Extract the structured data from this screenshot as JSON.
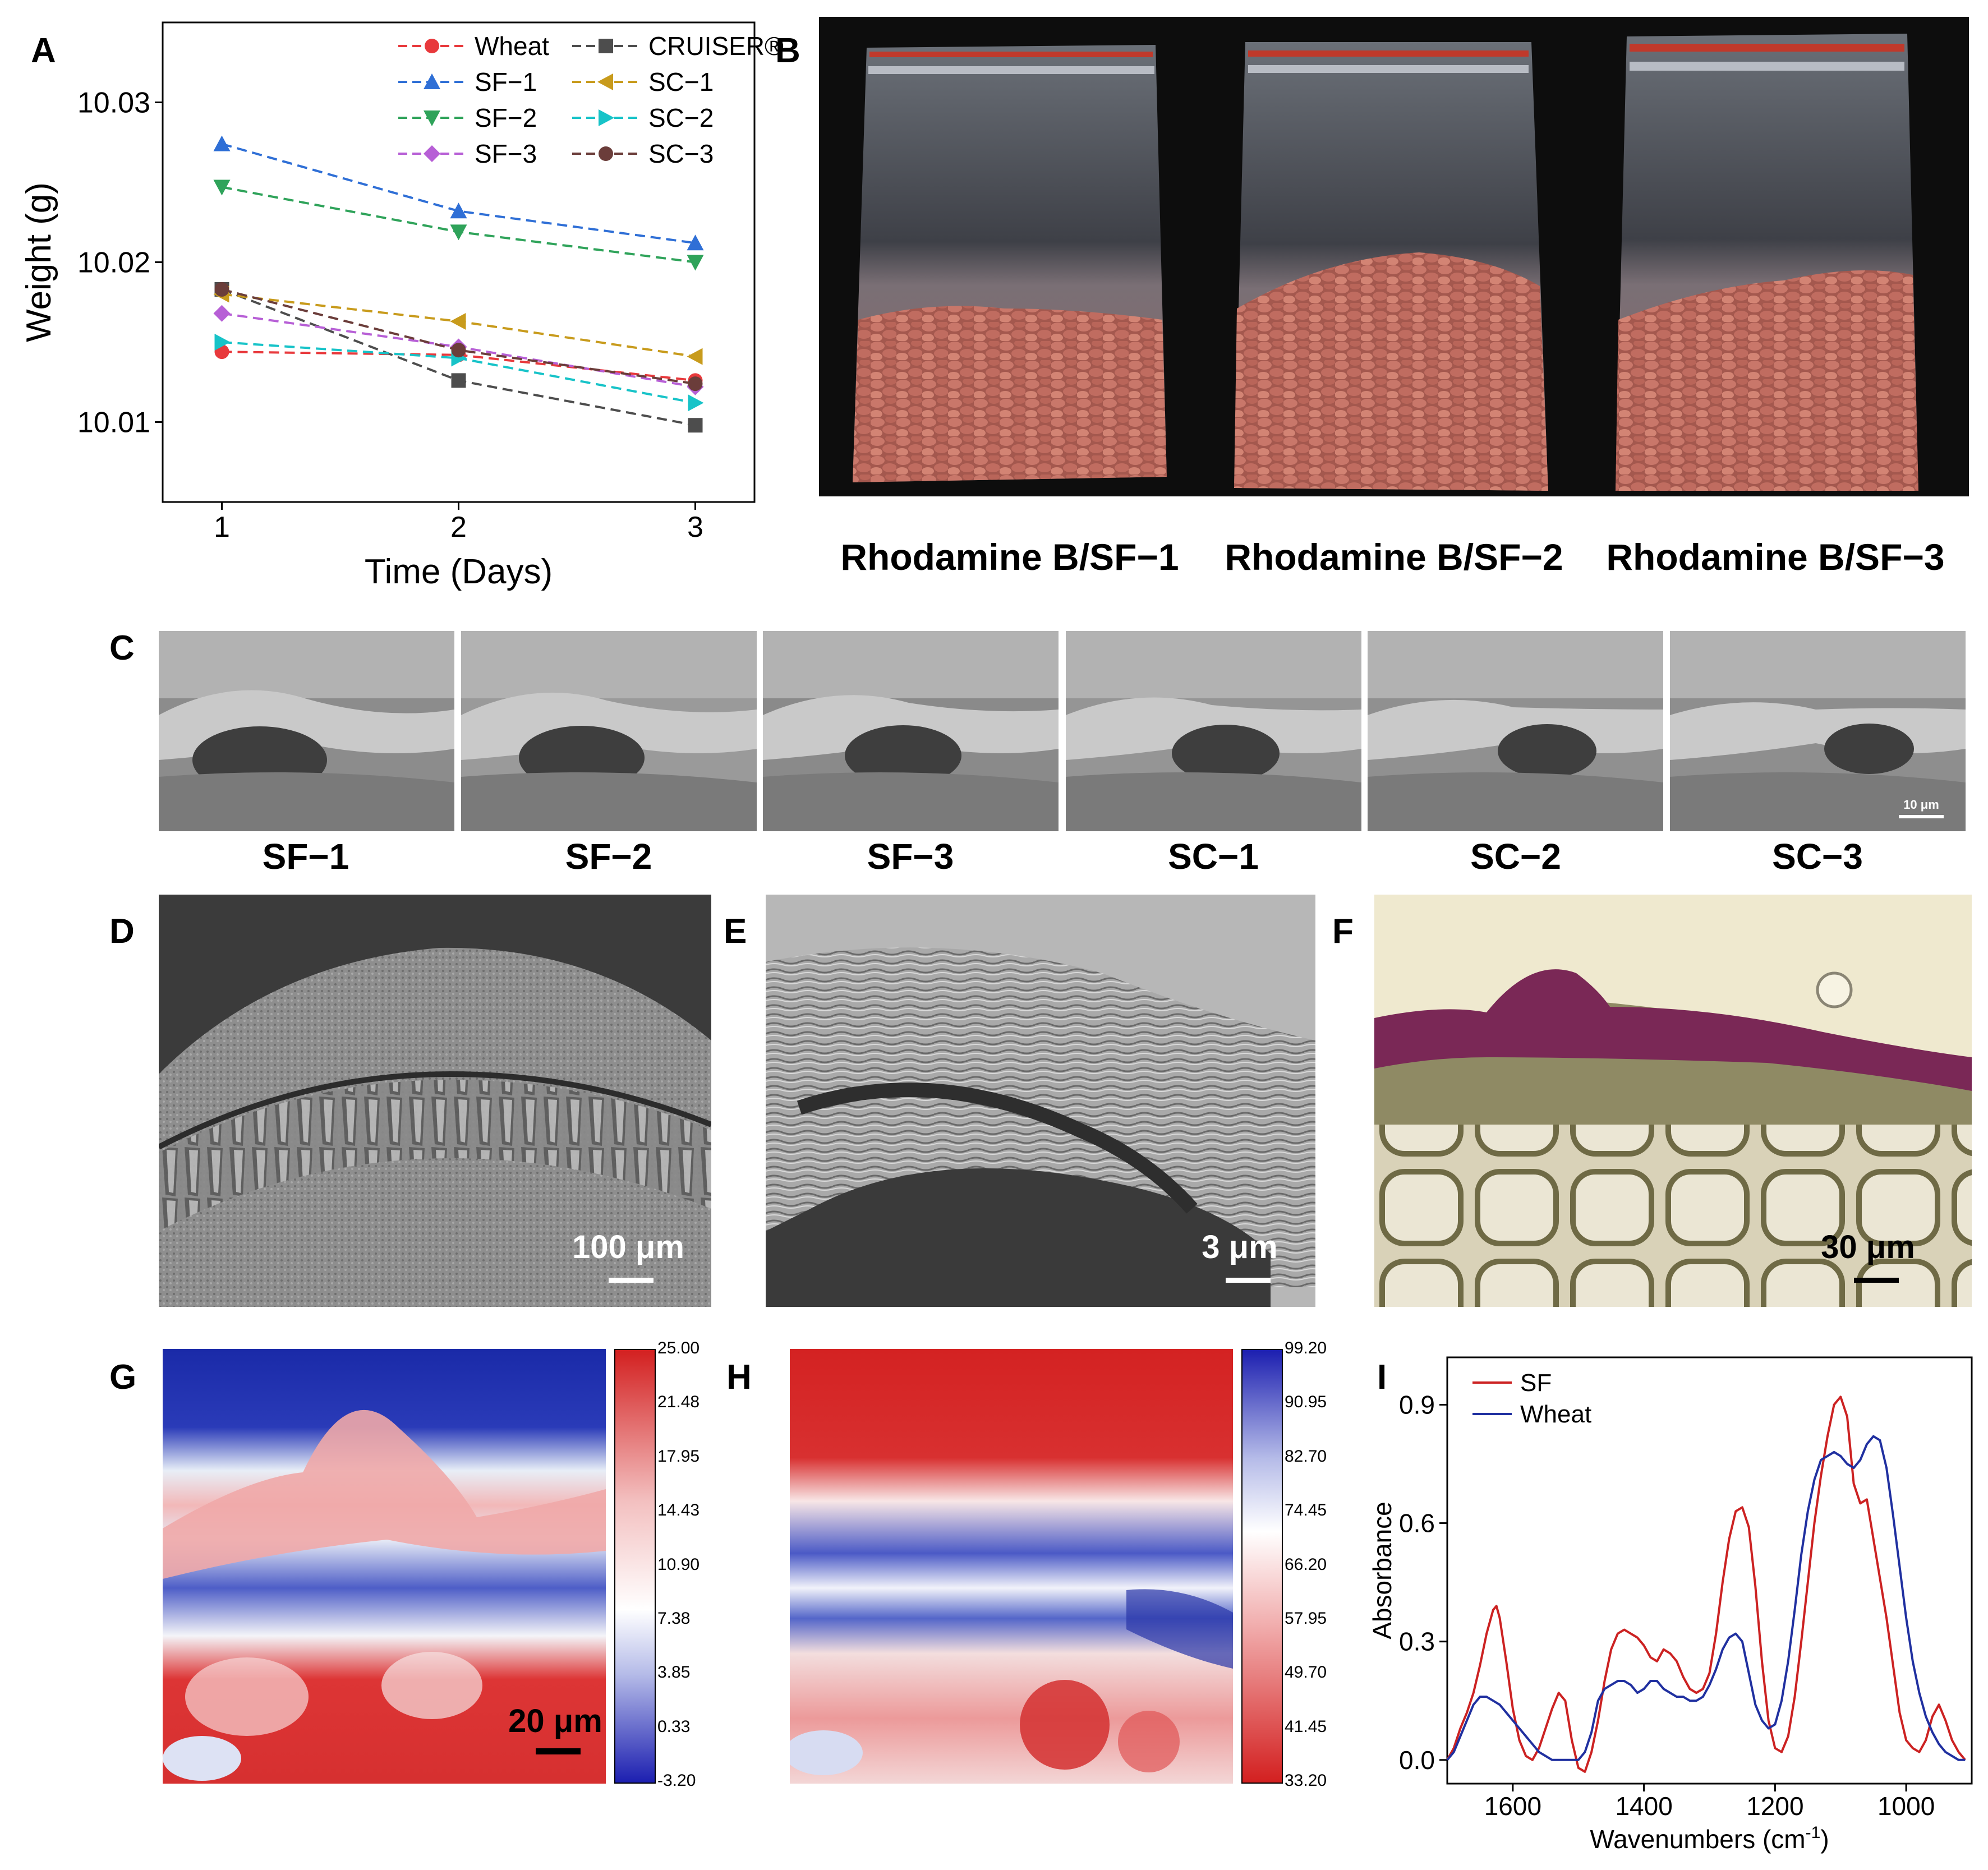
{
  "panelA": {
    "letter": "A",
    "chart_data": {
      "type": "line",
      "x": [
        1,
        2,
        3
      ],
      "xlabel": "Time (Days)",
      "ylabel": "Weight (g)",
      "xlim": [
        0.75,
        3.25
      ],
      "ylim": [
        10.005,
        10.035
      ],
      "xticks": [
        "1",
        "2",
        "3"
      ],
      "yticks": [
        "10.01",
        "10.02",
        "10.03"
      ],
      "series": [
        {
          "name": "Wheat",
          "color": "#e8393c",
          "marker": "circle",
          "values": [
            10.0144,
            10.0142,
            10.0126
          ]
        },
        {
          "name": "CRUISER®",
          "color": "#4d4d4d",
          "marker": "square",
          "values": [
            10.0183,
            10.0126,
            10.0098
          ]
        },
        {
          "name": "SF−1",
          "color": "#2f6fd6",
          "marker": "triangle-up",
          "values": [
            10.0274,
            10.0232,
            10.0212
          ]
        },
        {
          "name": "SC−1",
          "color": "#c89b1c",
          "marker": "triangle-left",
          "values": [
            10.018,
            10.0163,
            10.0141
          ]
        },
        {
          "name": "SF−2",
          "color": "#2fa35a",
          "marker": "triangle-down",
          "values": [
            10.0247,
            10.0219,
            10.02
          ]
        },
        {
          "name": "SC−2",
          "color": "#17c3c8",
          "marker": "triangle-right",
          "values": [
            10.015,
            10.014,
            10.0112
          ]
        },
        {
          "name": "SF−3",
          "color": "#b75fd6",
          "marker": "diamond",
          "values": [
            10.0168,
            10.0147,
            10.0122
          ]
        },
        {
          "name": "SC−3",
          "color": "#6b3d3a",
          "marker": "circle",
          "values": [
            10.0183,
            10.0145,
            10.0124
          ]
        }
      ]
    }
  },
  "panelB": {
    "letter": "B",
    "captions": [
      "Rhodamine B/SF−1",
      "Rhodamine B/SF−2",
      "Rhodamine B/SF−3"
    ]
  },
  "panelC": {
    "letter": "C",
    "captions": [
      "SF−1",
      "SF−2",
      "SF−3",
      "SC−1",
      "SC−2",
      "SC−3"
    ],
    "scalebar": "10 μm"
  },
  "panelD": {
    "letter": "D",
    "scalebar": "100 μm"
  },
  "panelE": {
    "letter": "E",
    "scalebar": "3 μm"
  },
  "panelF": {
    "letter": "F",
    "scalebar": "30 μm"
  },
  "panelG": {
    "letter": "G",
    "scalebar": "20 μm",
    "colorbar_ticks": [
      "25.00",
      "21.48",
      "17.95",
      "14.43",
      "10.90",
      "7.38",
      "3.85",
      "0.33",
      "-3.20"
    ]
  },
  "panelH": {
    "letter": "H",
    "colorbar_ticks": [
      "99.20",
      "90.95",
      "82.70",
      "74.45",
      "66.20",
      "57.95",
      "49.70",
      "41.45",
      "33.20"
    ]
  },
  "panelI": {
    "letter": "I",
    "chart_data": {
      "type": "line",
      "xlabel": "Wavenumbers (cm",
      "xlabel_sup": "-1",
      "xlabel_close": ")",
      "ylabel": "Absorbance",
      "xlim": [
        1700,
        900
      ],
      "ylim": [
        -0.06,
        1.02
      ],
      "xticks": [
        "1600",
        "1400",
        "1200",
        "1000"
      ],
      "yticks": [
        "0.0",
        "0.3",
        "0.6",
        "0.9"
      ],
      "series": [
        {
          "name": "SF",
          "color": "#cc2222",
          "x": [
            1700,
            1690,
            1680,
            1670,
            1660,
            1650,
            1640,
            1630,
            1625,
            1620,
            1610,
            1600,
            1590,
            1580,
            1570,
            1560,
            1550,
            1540,
            1530,
            1520,
            1510,
            1500,
            1490,
            1480,
            1470,
            1460,
            1450,
            1440,
            1430,
            1420,
            1410,
            1400,
            1390,
            1380,
            1370,
            1360,
            1350,
            1340,
            1330,
            1320,
            1310,
            1300,
            1290,
            1280,
            1270,
            1260,
            1250,
            1240,
            1230,
            1220,
            1210,
            1200,
            1190,
            1180,
            1170,
            1160,
            1150,
            1140,
            1130,
            1120,
            1110,
            1100,
            1090,
            1080,
            1070,
            1060,
            1050,
            1040,
            1030,
            1020,
            1010,
            1000,
            990,
            980,
            970,
            960,
            950,
            940,
            930,
            920,
            910
          ],
          "values": [
            0.0,
            0.03,
            0.08,
            0.12,
            0.17,
            0.24,
            0.32,
            0.38,
            0.39,
            0.36,
            0.25,
            0.13,
            0.05,
            0.01,
            0.0,
            0.03,
            0.08,
            0.13,
            0.17,
            0.15,
            0.05,
            -0.02,
            -0.03,
            0.02,
            0.1,
            0.2,
            0.28,
            0.32,
            0.33,
            0.32,
            0.31,
            0.29,
            0.26,
            0.25,
            0.28,
            0.27,
            0.25,
            0.21,
            0.18,
            0.17,
            0.18,
            0.22,
            0.32,
            0.45,
            0.56,
            0.63,
            0.64,
            0.59,
            0.44,
            0.25,
            0.1,
            0.03,
            0.02,
            0.06,
            0.16,
            0.3,
            0.45,
            0.6,
            0.72,
            0.82,
            0.9,
            0.92,
            0.87,
            0.7,
            0.65,
            0.66,
            0.56,
            0.46,
            0.36,
            0.24,
            0.12,
            0.05,
            0.03,
            0.02,
            0.05,
            0.11,
            0.14,
            0.1,
            0.05,
            0.02,
            0.0
          ]
        },
        {
          "name": "Wheat",
          "color": "#2030a0",
          "x": [
            1700,
            1690,
            1680,
            1670,
            1660,
            1650,
            1640,
            1630,
            1620,
            1610,
            1600,
            1590,
            1580,
            1570,
            1560,
            1550,
            1540,
            1530,
            1520,
            1510,
            1500,
            1490,
            1480,
            1470,
            1460,
            1450,
            1440,
            1430,
            1420,
            1410,
            1400,
            1390,
            1380,
            1370,
            1360,
            1350,
            1340,
            1330,
            1320,
            1310,
            1300,
            1290,
            1280,
            1270,
            1260,
            1250,
            1240,
            1230,
            1220,
            1210,
            1200,
            1190,
            1180,
            1170,
            1160,
            1150,
            1140,
            1130,
            1120,
            1110,
            1100,
            1090,
            1080,
            1070,
            1060,
            1050,
            1040,
            1030,
            1020,
            1010,
            1000,
            990,
            980,
            970,
            960,
            950,
            940,
            930,
            920,
            910
          ],
          "values": [
            0.0,
            0.02,
            0.06,
            0.1,
            0.14,
            0.16,
            0.16,
            0.15,
            0.14,
            0.12,
            0.1,
            0.08,
            0.06,
            0.04,
            0.02,
            0.01,
            0.0,
            0.0,
            0.0,
            0.0,
            0.0,
            0.02,
            0.07,
            0.15,
            0.18,
            0.19,
            0.2,
            0.2,
            0.19,
            0.17,
            0.18,
            0.2,
            0.2,
            0.18,
            0.17,
            0.16,
            0.16,
            0.15,
            0.15,
            0.16,
            0.19,
            0.23,
            0.28,
            0.31,
            0.32,
            0.3,
            0.22,
            0.14,
            0.1,
            0.08,
            0.09,
            0.15,
            0.25,
            0.38,
            0.52,
            0.63,
            0.71,
            0.76,
            0.77,
            0.78,
            0.77,
            0.75,
            0.74,
            0.76,
            0.8,
            0.82,
            0.81,
            0.74,
            0.62,
            0.49,
            0.36,
            0.25,
            0.17,
            0.11,
            0.07,
            0.04,
            0.02,
            0.01,
            0.0,
            0.0
          ]
        }
      ]
    }
  }
}
